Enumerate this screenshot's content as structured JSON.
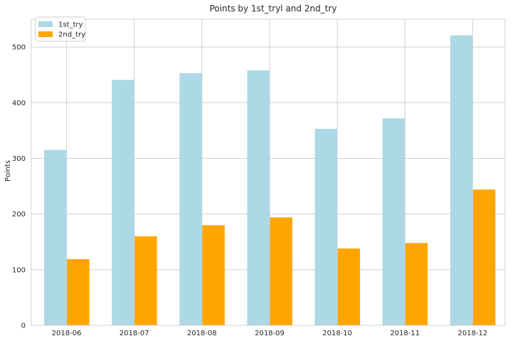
{
  "chart_data": {
    "type": "bar",
    "title": "Points by 1st_tryl and 2nd_try",
    "xlabel": "",
    "ylabel": "Points",
    "ylim": [
      0,
      550
    ],
    "yticks": [
      0,
      100,
      200,
      300,
      400,
      500
    ],
    "categories": [
      "2018-06",
      "2018-07",
      "2018-08",
      "2018-09",
      "2018-10",
      "2018-11",
      "2018-12"
    ],
    "series": [
      {
        "name": "1st_try",
        "color": "#add8e6",
        "values": [
          315,
          441,
          453,
          458,
          353,
          372,
          521
        ]
      },
      {
        "name": "2nd_try",
        "color": "#ffa500",
        "values": [
          119,
          160,
          180,
          194,
          138,
          148,
          244
        ]
      }
    ],
    "grid": true,
    "legend_position": "top-left"
  }
}
